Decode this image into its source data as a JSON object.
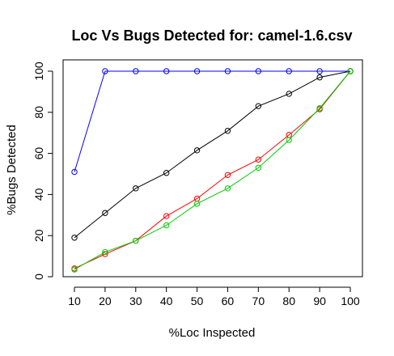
{
  "chart_data": {
    "type": "line",
    "title": "Loc Vs Bugs Detected for: camel-1.6.csv",
    "xlabel": "%Loc Inspected",
    "ylabel": "%Bugs Detected",
    "x": [
      10,
      20,
      30,
      40,
      50,
      60,
      70,
      80,
      90,
      100
    ],
    "x_tick_labels": [
      "10",
      "20",
      "30",
      "40",
      "50",
      "60",
      "70",
      "80",
      "90",
      "100"
    ],
    "y_ticks": [
      0,
      20,
      40,
      60,
      80,
      100
    ],
    "y_tick_labels": [
      "0",
      "20",
      "40",
      "60",
      "80",
      "100"
    ],
    "ylim": [
      0,
      100
    ],
    "grid": false,
    "series": [
      {
        "color": "#0000ff",
        "values": [
          51,
          100,
          100,
          100,
          100,
          100,
          100,
          100,
          100,
          100
        ]
      },
      {
        "color": "#000000",
        "values": [
          19,
          31,
          43,
          50.5,
          61.5,
          71,
          83,
          89,
          97,
          100
        ]
      },
      {
        "color": "#ff0000",
        "values": [
          4,
          11,
          17.5,
          29.5,
          38,
          49.5,
          57,
          69,
          81.5,
          100
        ]
      },
      {
        "color": "#00cc00",
        "values": [
          3.5,
          12,
          17.5,
          25,
          35.5,
          43,
          53,
          66.5,
          82,
          100
        ]
      }
    ]
  }
}
